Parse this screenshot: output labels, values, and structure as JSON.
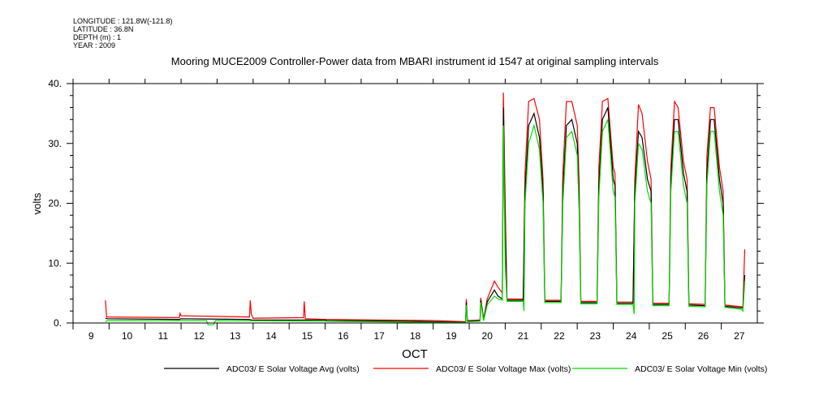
{
  "header": {
    "longitude": "LONGITUDE : 121.8W(-121.8)",
    "latitude": "LATITUDE : 36.8N",
    "depth": "DEPTH (m) : 1",
    "year": "YEAR : 2009"
  },
  "chart_data": {
    "type": "line",
    "title": "Mooring MUCE2009 Controller-Power data from MBARI instrument id 1547 at original sampling intervals",
    "xlabel": "OCT",
    "ylabel": "volts",
    "xlim": [
      9,
      28
    ],
    "ylim": [
      0,
      40
    ],
    "x_ticks": [
      9,
      10,
      11,
      12,
      13,
      14,
      15,
      16,
      17,
      18,
      19,
      20,
      21,
      22,
      23,
      24,
      25,
      26,
      27
    ],
    "x_tick_labels": [
      "9",
      "10",
      "11",
      "12",
      "13",
      "14",
      "15",
      "16",
      "17",
      "18",
      "19",
      "20",
      "21",
      "22",
      "23",
      "24",
      "25",
      "26",
      "27"
    ],
    "y_ticks": [
      0,
      10,
      20,
      30,
      40
    ],
    "y_tick_labels": [
      "0.",
      "10.",
      "20.",
      "30.",
      "40."
    ],
    "grid": false,
    "legend_position": "bottom",
    "series": [
      {
        "name": "ADC03/ E Solar Voltage Max (volts)",
        "color": "#ff0000",
        "points": [
          [
            9.9,
            3.8
          ],
          [
            9.93,
            1.0
          ],
          [
            11.95,
            0.9
          ],
          [
            11.97,
            1.6
          ],
          [
            12.0,
            1.2
          ],
          [
            13.9,
            1.0
          ],
          [
            13.92,
            3.8
          ],
          [
            13.95,
            1.5
          ],
          [
            14.0,
            0.8
          ],
          [
            15.4,
            0.9
          ],
          [
            15.42,
            3.6
          ],
          [
            15.45,
            0.7
          ],
          [
            16.0,
            0.6
          ],
          [
            17.5,
            0.5
          ],
          [
            19.1,
            0.4
          ],
          [
            19.9,
            0.2
          ],
          [
            19.92,
            4
          ],
          [
            19.95,
            0.4
          ],
          [
            20.3,
            0.5
          ],
          [
            20.32,
            4.2
          ],
          [
            20.4,
            0.6
          ],
          [
            20.5,
            4
          ],
          [
            20.7,
            7
          ],
          [
            20.8,
            6
          ],
          [
            20.92,
            5
          ],
          [
            20.95,
            38.5
          ],
          [
            21.0,
            20
          ],
          [
            21.05,
            4
          ],
          [
            21.5,
            4
          ],
          [
            21.55,
            25
          ],
          [
            21.65,
            37
          ],
          [
            21.8,
            37.5
          ],
          [
            21.95,
            34
          ],
          [
            22.05,
            24
          ],
          [
            22.1,
            3.8
          ],
          [
            22.55,
            3.8
          ],
          [
            22.6,
            25
          ],
          [
            22.7,
            37
          ],
          [
            22.85,
            37
          ],
          [
            23.0,
            33
          ],
          [
            23.05,
            24
          ],
          [
            23.1,
            3.6
          ],
          [
            23.55,
            3.6
          ],
          [
            23.6,
            26
          ],
          [
            23.7,
            37
          ],
          [
            23.85,
            37.5
          ],
          [
            24.0,
            26
          ],
          [
            24.05,
            25
          ],
          [
            24.1,
            3.5
          ],
          [
            24.55,
            3.5
          ],
          [
            24.6,
            24
          ],
          [
            24.7,
            36.5
          ],
          [
            24.8,
            35
          ],
          [
            24.95,
            27
          ],
          [
            25.05,
            24
          ],
          [
            25.1,
            3.3
          ],
          [
            25.55,
            3.3
          ],
          [
            25.6,
            26
          ],
          [
            25.7,
            37
          ],
          [
            25.8,
            36
          ],
          [
            25.95,
            27
          ],
          [
            26.05,
            24
          ],
          [
            26.1,
            3.2
          ],
          [
            26.55,
            3.1
          ],
          [
            26.6,
            28
          ],
          [
            26.7,
            36
          ],
          [
            26.8,
            36
          ],
          [
            26.95,
            26
          ],
          [
            27.05,
            22
          ],
          [
            27.1,
            3.0
          ],
          [
            27.6,
            2.7
          ],
          [
            27.65,
            12.3
          ]
        ]
      },
      {
        "name": "ADC03/ E Solar Voltage Avg (volts)",
        "color": "#000000",
        "points": [
          [
            9.9,
            0.8
          ],
          [
            9.95,
            0.7
          ],
          [
            11.95,
            0.6
          ],
          [
            12.0,
            0.7
          ],
          [
            13.9,
            0.6
          ],
          [
            13.95,
            0.5
          ],
          [
            16.0,
            0.5
          ],
          [
            16.05,
            0.4
          ],
          [
            17.5,
            0.35
          ],
          [
            19.1,
            0.2
          ],
          [
            19.9,
            0.1
          ],
          [
            19.92,
            3.5
          ],
          [
            19.95,
            0.3
          ],
          [
            20.3,
            0.4
          ],
          [
            20.32,
            3.8
          ],
          [
            20.4,
            0.5
          ],
          [
            20.5,
            3.5
          ],
          [
            20.7,
            5.5
          ],
          [
            20.8,
            4.5
          ],
          [
            20.92,
            4
          ],
          [
            20.95,
            36
          ],
          [
            21.0,
            15
          ],
          [
            21.05,
            3.8
          ],
          [
            21.5,
            3.8
          ],
          [
            21.55,
            22
          ],
          [
            21.65,
            33
          ],
          [
            21.8,
            35
          ],
          [
            21.95,
            31
          ],
          [
            22.05,
            22
          ],
          [
            22.1,
            3.6
          ],
          [
            22.55,
            3.6
          ],
          [
            22.6,
            22
          ],
          [
            22.7,
            33
          ],
          [
            22.85,
            34
          ],
          [
            23.0,
            30
          ],
          [
            23.05,
            21
          ],
          [
            23.1,
            3.4
          ],
          [
            23.55,
            3.4
          ],
          [
            23.6,
            23
          ],
          [
            23.7,
            34
          ],
          [
            23.85,
            36
          ],
          [
            24.0,
            24
          ],
          [
            24.05,
            23
          ],
          [
            24.1,
            3.3
          ],
          [
            24.55,
            3.3
          ],
          [
            24.6,
            22
          ],
          [
            24.7,
            32
          ],
          [
            24.8,
            31
          ],
          [
            24.95,
            24
          ],
          [
            25.05,
            22
          ],
          [
            25.1,
            3.1
          ],
          [
            25.55,
            3.1
          ],
          [
            25.6,
            24
          ],
          [
            25.7,
            34
          ],
          [
            25.8,
            34
          ],
          [
            25.95,
            25
          ],
          [
            26.05,
            22
          ],
          [
            26.1,
            3.0
          ],
          [
            26.55,
            2.9
          ],
          [
            26.6,
            25
          ],
          [
            26.7,
            34
          ],
          [
            26.8,
            34
          ],
          [
            26.95,
            24
          ],
          [
            27.05,
            20
          ],
          [
            27.1,
            2.8
          ],
          [
            27.6,
            2.5
          ],
          [
            27.65,
            8
          ]
        ]
      },
      {
        "name": "ADC03/ E Solar Voltage Min (volts)",
        "color": "#00dd00",
        "points": [
          [
            9.9,
            0.2
          ],
          [
            9.95,
            0.4
          ],
          [
            12.0,
            0.4
          ],
          [
            12.7,
            0.4
          ],
          [
            12.75,
            -0.3
          ],
          [
            12.9,
            -0.3
          ],
          [
            12.95,
            0.4
          ],
          [
            16.0,
            0.3
          ],
          [
            19.1,
            0.1
          ],
          [
            19.9,
            0.05
          ],
          [
            19.92,
            3.0
          ],
          [
            19.95,
            0.2
          ],
          [
            20.3,
            0.3
          ],
          [
            20.32,
            3.4
          ],
          [
            20.4,
            0.4
          ],
          [
            20.5,
            3.0
          ],
          [
            20.7,
            4.5
          ],
          [
            20.8,
            4
          ],
          [
            20.92,
            3.8
          ],
          [
            20.95,
            33
          ],
          [
            21.0,
            10
          ],
          [
            21.05,
            3.6
          ],
          [
            21.5,
            3.6
          ],
          [
            21.52,
            2
          ],
          [
            21.55,
            20
          ],
          [
            21.65,
            30
          ],
          [
            21.8,
            33
          ],
          [
            21.95,
            29
          ],
          [
            22.05,
            20
          ],
          [
            22.1,
            3.4
          ],
          [
            22.55,
            3.4
          ],
          [
            22.6,
            20
          ],
          [
            22.7,
            31
          ],
          [
            22.85,
            32
          ],
          [
            23.0,
            28
          ],
          [
            23.05,
            19
          ],
          [
            23.1,
            3.2
          ],
          [
            23.55,
            3.2
          ],
          [
            23.6,
            21
          ],
          [
            23.7,
            32
          ],
          [
            23.85,
            34
          ],
          [
            24.0,
            22
          ],
          [
            24.05,
            21
          ],
          [
            24.1,
            3.1
          ],
          [
            24.55,
            3.1
          ],
          [
            24.58,
            1.5
          ],
          [
            24.6,
            20
          ],
          [
            24.7,
            30
          ],
          [
            24.8,
            29
          ],
          [
            24.95,
            22
          ],
          [
            25.05,
            20
          ],
          [
            25.1,
            2.9
          ],
          [
            25.55,
            2.9
          ],
          [
            25.6,
            22
          ],
          [
            25.7,
            32
          ],
          [
            25.8,
            32
          ],
          [
            25.95,
            23
          ],
          [
            26.05,
            20
          ],
          [
            26.1,
            2.8
          ],
          [
            26.55,
            2.7
          ],
          [
            26.6,
            23
          ],
          [
            26.7,
            32
          ],
          [
            26.8,
            32
          ],
          [
            26.95,
            22
          ],
          [
            27.05,
            18
          ],
          [
            27.1,
            2.6
          ],
          [
            27.55,
            2.3
          ],
          [
            27.6,
            2
          ],
          [
            27.65,
            7
          ]
        ]
      }
    ],
    "legend": [
      {
        "label": "ADC03/ E Solar Voltage Avg (volts)",
        "color": "#000000"
      },
      {
        "label": "ADC03/ E Solar Voltage Max (volts)",
        "color": "#ff0000"
      },
      {
        "label": "ADC03/ E Solar Voltage Min (volts)",
        "color": "#00dd00"
      }
    ]
  }
}
